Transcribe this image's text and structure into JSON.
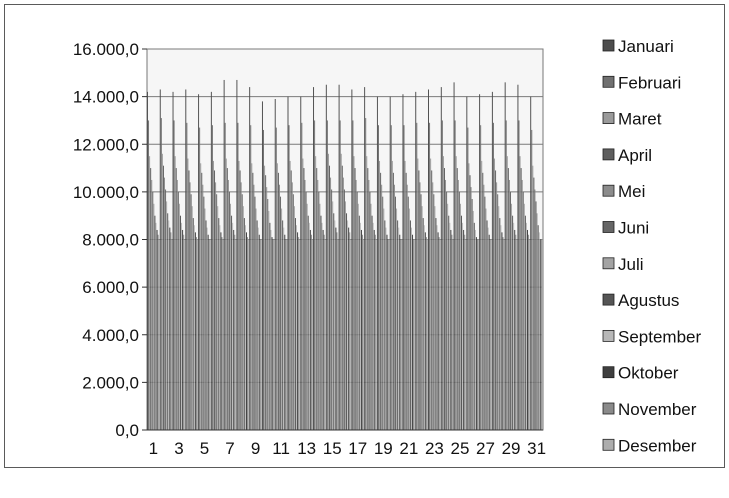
{
  "chart_data": {
    "type": "bar",
    "title": "",
    "xlabel": "",
    "ylabel": "",
    "ylim": [
      0,
      16000
    ],
    "y_ticks": [
      "0,0",
      "2.000,0",
      "4.000,0",
      "6.000,0",
      "8.000,0",
      "10.000,0",
      "12.000,0",
      "14.000,0",
      "16.000,0"
    ],
    "y_tick_values": [
      0,
      2000,
      4000,
      6000,
      8000,
      10000,
      12000,
      14000,
      16000
    ],
    "categories": [
      "1",
      "2",
      "3",
      "4",
      "5",
      "6",
      "7",
      "8",
      "9",
      "10",
      "11",
      "12",
      "13",
      "14",
      "15",
      "16",
      "17",
      "18",
      "19",
      "20",
      "21",
      "22",
      "23",
      "24",
      "25",
      "26",
      "27",
      "28",
      "29",
      "30",
      "31"
    ],
    "x_tick_labels": [
      "1",
      "3",
      "5",
      "7",
      "9",
      "11",
      "13",
      "15",
      "17",
      "19",
      "21",
      "23",
      "25",
      "27",
      "29",
      "31"
    ],
    "grid": true,
    "legend_position": "right",
    "series": [
      {
        "name": "Januari",
        "color": "#4d4d4d",
        "values": [
          14200,
          14300,
          14200,
          14300,
          14100,
          14200,
          14700,
          14700,
          14400,
          13800,
          13900,
          14000,
          14000,
          14400,
          14500,
          14500,
          14300,
          14400,
          14000,
          14000,
          14100,
          14200,
          14300,
          14400,
          14600,
          14000,
          14100,
          14200,
          14600,
          14500,
          14000
        ]
      },
      {
        "name": "Februari",
        "color": "#707070",
        "values": [
          13000,
          13100,
          13000,
          12900,
          12700,
          12800,
          12900,
          12900,
          12800,
          12600,
          12700,
          12800,
          12900,
          13000,
          13000,
          13000,
          13000,
          13100,
          12800,
          12800,
          12800,
          12900,
          12900,
          13000,
          13000,
          12700,
          12800,
          12900,
          13000,
          13000,
          12600
        ]
      },
      {
        "name": "Maret",
        "color": "#9a9a9a",
        "values": [
          11500,
          11600,
          11500,
          11400,
          11200,
          11300,
          11400,
          11300,
          11200,
          11100,
          11200,
          11300,
          11400,
          11500,
          11600,
          11600,
          11500,
          11500,
          11300,
          11300,
          11300,
          11400,
          11400,
          11500,
          11500,
          11200,
          11300,
          11400,
          11500,
          11500,
          11100
        ]
      },
      {
        "name": "April",
        "color": "#5e5e5e",
        "values": [
          11000,
          11100,
          11000,
          10900,
          10800,
          10900,
          11000,
          10900,
          10800,
          10700,
          10800,
          10900,
          11000,
          11000,
          11100,
          11100,
          11000,
          11000,
          10800,
          10800,
          10800,
          10900,
          10900,
          11000,
          11000,
          10700,
          10800,
          10900,
          11000,
          11000,
          10600
        ]
      },
      {
        "name": "Mei",
        "color": "#8c8c8c",
        "values": [
          10500,
          10600,
          10500,
          10400,
          10300,
          10400,
          10500,
          10400,
          10300,
          10200,
          10300,
          10400,
          10500,
          10500,
          10600,
          10600,
          10500,
          10500,
          10300,
          10300,
          10300,
          10400,
          10400,
          10500,
          10500,
          10200,
          10300,
          10400,
          10500,
          10500,
          10100
        ]
      },
      {
        "name": "Juni",
        "color": "#666666",
        "values": [
          10000,
          10100,
          10000,
          9900,
          9800,
          9900,
          10000,
          9900,
          9800,
          9700,
          9800,
          9900,
          10000,
          10000,
          10100,
          10100,
          10000,
          10000,
          9800,
          9800,
          9800,
          9900,
          9900,
          10000,
          10000,
          9700,
          9800,
          9900,
          10000,
          10000,
          9600
        ]
      },
      {
        "name": "Juli",
        "color": "#a3a3a3",
        "values": [
          9500,
          9600,
          9500,
          9400,
          9300,
          9400,
          9500,
          9400,
          9300,
          9200,
          9300,
          9400,
          9500,
          9500,
          9600,
          9600,
          9500,
          9500,
          9300,
          9300,
          9300,
          9400,
          9400,
          9500,
          9500,
          9200,
          9300,
          9400,
          9500,
          9500,
          9100
        ]
      },
      {
        "name": "Agustus",
        "color": "#555555",
        "values": [
          9000,
          9100,
          9000,
          8900,
          8800,
          8900,
          9000,
          8900,
          8800,
          8700,
          8800,
          8900,
          9000,
          9000,
          9100,
          9100,
          9000,
          9000,
          8800,
          8800,
          8800,
          8900,
          8900,
          9000,
          9000,
          8700,
          8800,
          8900,
          9000,
          9000,
          8600
        ]
      },
      {
        "name": "September",
        "color": "#b8b8b8",
        "values": [
          8700,
          8800,
          8700,
          8600,
          8500,
          8600,
          8700,
          8600,
          8500,
          8400,
          8500,
          8600,
          8700,
          8700,
          8800,
          8800,
          8700,
          8700,
          8500,
          8500,
          8500,
          8600,
          8600,
          8700,
          8700,
          8400,
          8500,
          8600,
          8700,
          8700,
          8300
        ]
      },
      {
        "name": "Oktober",
        "color": "#3f3f3f",
        "values": [
          8400,
          8500,
          8400,
          8300,
          8200,
          8300,
          8400,
          8300,
          8200,
          8100,
          8200,
          8300,
          8400,
          8400,
          8500,
          8500,
          8400,
          8400,
          8200,
          8200,
          8200,
          8300,
          8300,
          8400,
          8400,
          8100,
          8200,
          8300,
          8400,
          8400,
          8000
        ]
      },
      {
        "name": "November",
        "color": "#8a8a8a",
        "values": [
          8200,
          8300,
          8200,
          8100,
          8000,
          8100,
          8200,
          8100,
          8000,
          8000,
          8000,
          8100,
          8200,
          8200,
          8300,
          8300,
          8200,
          8200,
          8000,
          8000,
          8000,
          8100,
          8100,
          8200,
          8200,
          8000,
          8000,
          8100,
          8200,
          8200,
          8000
        ]
      },
      {
        "name": "Desember",
        "color": "#adadad",
        "values": [
          8000,
          8000,
          8000,
          8000,
          8000,
          8000,
          8000,
          8000,
          8000,
          8000,
          8000,
          8000,
          8000,
          8000,
          8000,
          8000,
          8000,
          8000,
          8000,
          8000,
          8000,
          8000,
          8000,
          8000,
          8000,
          8000,
          8000,
          8000,
          8000,
          8000,
          8000
        ]
      }
    ]
  }
}
